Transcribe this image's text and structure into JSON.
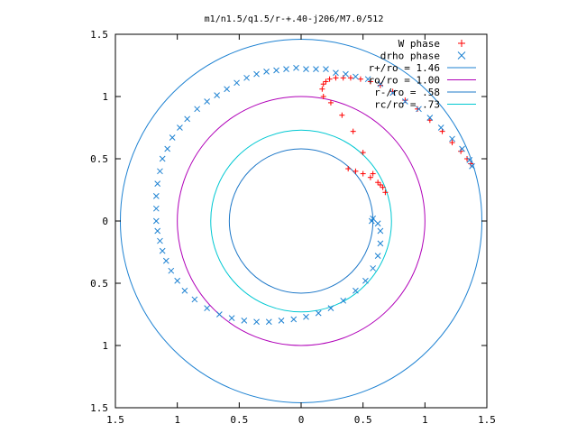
{
  "chart_data": {
    "type": "scatter",
    "title": "m1/n1.5/q1.5/r-+.40-j206/M7.0/512",
    "xlabel": "",
    "ylabel": "",
    "xlim": [
      -1.5,
      1.5
    ],
    "ylim": [
      -1.5,
      1.5
    ],
    "x_tick_labels": [
      "1.5",
      "1",
      "0.5",
      "0",
      "0.5",
      "1",
      "1.5"
    ],
    "y_tick_labels": [
      "1.5",
      "1",
      "0.5",
      "0",
      "0.5",
      "1",
      "1.5"
    ],
    "grid": false,
    "legend_position": "top-right",
    "series": [
      {
        "name": "W phase",
        "kind": "points",
        "marker": "plus",
        "color": "#ff0000",
        "points": [
          [
            0.38,
            0.42
          ],
          [
            0.44,
            0.4
          ],
          [
            0.5,
            0.38
          ],
          [
            0.56,
            0.35
          ],
          [
            0.62,
            0.31
          ],
          [
            0.66,
            0.27
          ],
          [
            0.68,
            0.23
          ],
          [
            0.64,
            0.29
          ],
          [
            0.58,
            0.38
          ],
          [
            0.5,
            0.55
          ],
          [
            0.42,
            0.72
          ],
          [
            0.33,
            0.85
          ],
          [
            0.24,
            0.95
          ],
          [
            0.18,
            1.0
          ],
          [
            0.17,
            1.06
          ],
          [
            0.18,
            1.1
          ],
          [
            0.2,
            1.12
          ],
          [
            0.23,
            1.14
          ],
          [
            0.28,
            1.15
          ],
          [
            0.34,
            1.15
          ],
          [
            0.4,
            1.15
          ],
          [
            0.48,
            1.14
          ],
          [
            0.56,
            1.12
          ],
          [
            0.64,
            1.09
          ],
          [
            0.74,
            1.04
          ],
          [
            0.84,
            0.97
          ],
          [
            0.94,
            0.9
          ],
          [
            1.04,
            0.81
          ],
          [
            1.14,
            0.72
          ],
          [
            1.22,
            0.63
          ],
          [
            1.29,
            0.56
          ],
          [
            1.34,
            0.5
          ],
          [
            1.37,
            0.46
          ]
        ]
      },
      {
        "name": "drho phase",
        "kind": "points",
        "marker": "x",
        "color": "#1e82d2",
        "points": [
          [
            1.38,
            0.44
          ],
          [
            1.36,
            0.49
          ],
          [
            1.3,
            0.58
          ],
          [
            1.22,
            0.66
          ],
          [
            1.13,
            0.75
          ],
          [
            1.04,
            0.83
          ],
          [
            0.95,
            0.9
          ],
          [
            0.84,
            0.96
          ],
          [
            0.74,
            1.03
          ],
          [
            0.64,
            1.1
          ],
          [
            0.54,
            1.14
          ],
          [
            0.44,
            1.16
          ],
          [
            0.36,
            1.18
          ],
          [
            0.28,
            1.19
          ],
          [
            0.2,
            1.22
          ],
          [
            0.12,
            1.22
          ],
          [
            0.04,
            1.22
          ],
          [
            -0.04,
            1.23
          ],
          [
            -0.12,
            1.22
          ],
          [
            -0.2,
            1.21
          ],
          [
            -0.28,
            1.2
          ],
          [
            -0.36,
            1.18
          ],
          [
            -0.44,
            1.15
          ],
          [
            -0.52,
            1.11
          ],
          [
            -0.6,
            1.06
          ],
          [
            -0.68,
            1.01
          ],
          [
            -0.76,
            0.96
          ],
          [
            -0.84,
            0.9
          ],
          [
            -0.92,
            0.82
          ],
          [
            -0.98,
            0.75
          ],
          [
            -1.04,
            0.67
          ],
          [
            -1.08,
            0.58
          ],
          [
            -1.12,
            0.5
          ],
          [
            -1.14,
            0.4
          ],
          [
            -1.16,
            0.3
          ],
          [
            -1.17,
            0.2
          ],
          [
            -1.17,
            0.1
          ],
          [
            -1.17,
            0.0
          ],
          [
            -1.16,
            -0.08
          ],
          [
            -1.14,
            -0.16
          ],
          [
            -1.12,
            -0.24
          ],
          [
            -1.09,
            -0.32
          ],
          [
            -1.05,
            -0.4
          ],
          [
            -1.0,
            -0.48
          ],
          [
            -0.94,
            -0.56
          ],
          [
            -0.86,
            -0.63
          ],
          [
            -0.76,
            -0.7
          ],
          [
            -0.66,
            -0.75
          ],
          [
            -0.56,
            -0.78
          ],
          [
            -0.46,
            -0.8
          ],
          [
            -0.36,
            -0.81
          ],
          [
            -0.26,
            -0.81
          ],
          [
            -0.16,
            -0.8
          ],
          [
            -0.06,
            -0.79
          ],
          [
            0.04,
            -0.77
          ],
          [
            0.14,
            -0.74
          ],
          [
            0.24,
            -0.7
          ],
          [
            0.34,
            -0.64
          ],
          [
            0.44,
            -0.56
          ],
          [
            0.52,
            -0.48
          ],
          [
            0.58,
            -0.38
          ],
          [
            0.62,
            -0.28
          ],
          [
            0.64,
            -0.18
          ],
          [
            0.64,
            -0.08
          ],
          [
            0.62,
            -0.02
          ],
          [
            0.58,
            0.02
          ],
          [
            0.57,
            0.0
          ]
        ]
      },
      {
        "name": "r+/ro = 1.46",
        "kind": "circle",
        "radius": 1.46,
        "color": "#1e82d2"
      },
      {
        "name": "ro/ro = 1.00",
        "kind": "circle",
        "radius": 1.0,
        "color": "#b000b8"
      },
      {
        "name": "r-/ro = .58",
        "kind": "circle",
        "radius": 0.58,
        "color": "#1e78c8"
      },
      {
        "name": "rc/ro = .73",
        "kind": "circle",
        "radius": 0.73,
        "color": "#00c8d2"
      }
    ]
  }
}
